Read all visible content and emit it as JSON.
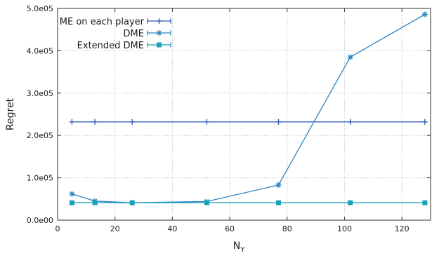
{
  "chart_data": {
    "type": "line",
    "xlabel": "N",
    "xlabel_subscript": "Y",
    "ylabel": "Regret",
    "xlim": [
      0,
      130
    ],
    "ylim": [
      0,
      500000
    ],
    "xticks": [
      0,
      20,
      40,
      60,
      80,
      100,
      120
    ],
    "xtick_labels": [
      "0",
      "20",
      "40",
      "60",
      "80",
      "100",
      "120"
    ],
    "yticks": [
      0,
      100000,
      200000,
      300000,
      400000,
      500000
    ],
    "ytick_labels": [
      "0.0e00",
      "1.0e05",
      "2.0e05",
      "3.0e05",
      "4.0e05",
      "5.0e05"
    ],
    "grid": true,
    "legend_position": "top-left",
    "x": [
      5,
      13,
      26,
      52,
      77,
      102,
      128
    ],
    "series": [
      {
        "name": "ME on each player",
        "color": "#2a56b8",
        "marker": "plus",
        "values": [
          232000,
          232000,
          232000,
          232000,
          232000,
          232000,
          232000
        ]
      },
      {
        "name": "DME",
        "color": "#2e86c1",
        "marker": "asterisk",
        "values": [
          62000,
          45000,
          41000,
          44000,
          83000,
          385000,
          486000
        ]
      },
      {
        "name": "Extended DME",
        "color": "#17a2b8",
        "marker": "square",
        "values": [
          41000,
          41000,
          41000,
          41000,
          41000,
          41000,
          41000
        ]
      }
    ]
  }
}
